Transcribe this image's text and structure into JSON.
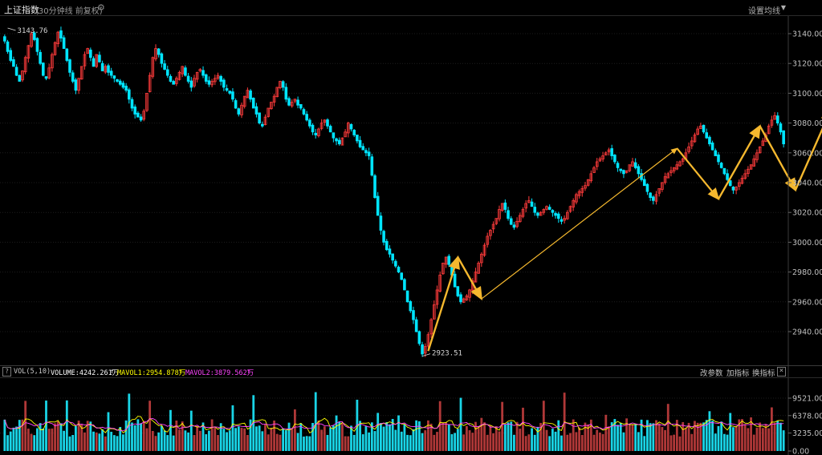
{
  "header": {
    "title": "上证指数",
    "subtitle": "(30分钟线 前复权)",
    "settings_label": "设置均线",
    "gear_icon": "gear-icon",
    "caret_icon": "caret-down-icon"
  },
  "volume_bar": {
    "help_label": "?",
    "vol_label": "VOL(5,10)",
    "volume_text": "VOLUME:4242.261万",
    "mavol1_text": "MAVOL1:2954.878万",
    "mavol2_text": "MAVOL2:3879.562万",
    "up_arrow": "↑",
    "change_params_label": "改参数",
    "add_indicator_label": "加指标",
    "switch_indicator_label": "换指标",
    "close_label": "×",
    "colors": {
      "volume": "#ffffff",
      "mavol1": "#ffff00",
      "mavol2": "#ff44ff"
    }
  },
  "chart_data": [
    {
      "type": "candlestick",
      "title": "上证指数",
      "ylim": [
        2920,
        3150
      ],
      "yticks": [
        {
          "value": 3140,
          "label": "3140.00"
        },
        {
          "value": 3120,
          "label": "3120.00"
        },
        {
          "value": 3100,
          "label": "3100.00"
        },
        {
          "value": 3080,
          "label": "3080.00"
        },
        {
          "value": 3060,
          "label": "3060.00"
        },
        {
          "value": 3040,
          "label": "3040.00"
        },
        {
          "value": 3020,
          "label": "3020.00"
        },
        {
          "value": 3000,
          "label": "3000.00"
        },
        {
          "value": 2980,
          "label": "2980.00"
        },
        {
          "value": 2960,
          "label": "2960.00"
        },
        {
          "value": 2940,
          "label": "2940.00"
        }
      ],
      "grid": true,
      "annotations": [
        {
          "text": "3143.76",
          "value": 3143.76,
          "kind": "high"
        },
        {
          "text": "2923.51",
          "value": 2923.51,
          "kind": "low"
        }
      ],
      "closes": [
        3135,
        3128,
        3122,
        3118,
        3112,
        3108,
        3115,
        3124,
        3132,
        3140,
        3136,
        3128,
        3120,
        3112,
        3110,
        3117,
        3126,
        3134,
        3141,
        3137,
        3130,
        3122,
        3114,
        3108,
        3102,
        3110,
        3118,
        3126,
        3130,
        3124,
        3118,
        3126,
        3121,
        3115,
        3118,
        3114,
        3112,
        3110,
        3108,
        3106,
        3104,
        3102,
        3096,
        3090,
        3086,
        3084,
        3082,
        3088,
        3100,
        3112,
        3124,
        3130,
        3126,
        3120,
        3116,
        3112,
        3108,
        3106,
        3110,
        3114,
        3118,
        3112,
        3108,
        3104,
        3110,
        3114,
        3116,
        3112,
        3108,
        3106,
        3108,
        3110,
        3112,
        3108,
        3104,
        3102,
        3100,
        3096,
        3090,
        3086,
        3092,
        3098,
        3102,
        3096,
        3090,
        3086,
        3080,
        3078,
        3084,
        3090,
        3094,
        3098,
        3104,
        3108,
        3104,
        3096,
        3092,
        3094,
        3096,
        3092,
        3090,
        3086,
        3082,
        3078,
        3074,
        3072,
        3076,
        3080,
        3082,
        3078,
        3074,
        3070,
        3068,
        3066,
        3070,
        3074,
        3080,
        3076,
        3072,
        3068,
        3064,
        3062,
        3060,
        3058,
        3045,
        3030,
        3018,
        3008,
        3000,
        2995,
        2992,
        2988,
        2984,
        2980,
        2975,
        2968,
        2960,
        2954,
        2948,
        2940,
        2932,
        2925,
        2930,
        2938,
        2948,
        2958,
        2968,
        2978,
        2986,
        2990,
        2985,
        2978,
        2970,
        2964,
        2960,
        2962,
        2964,
        2968,
        2974,
        2980,
        2986,
        2992,
        2998,
        3004,
        3008,
        3012,
        3016,
        3022,
        3026,
        3022,
        3016,
        3012,
        3010,
        3014,
        3018,
        3022,
        3026,
        3028,
        3024,
        3020,
        3018,
        3020,
        3022,
        3024,
        3022,
        3020,
        3018,
        3016,
        3014,
        3016,
        3020,
        3024,
        3028,
        3032,
        3034,
        3036,
        3038,
        3042,
        3046,
        3050,
        3054,
        3056,
        3058,
        3060,
        3062,
        3058,
        3054,
        3050,
        3048,
        3046,
        3048,
        3052,
        3054,
        3050,
        3046,
        3042,
        3038,
        3034,
        3030,
        3028,
        3032,
        3036,
        3040,
        3044,
        3046,
        3048,
        3050,
        3052,
        3054,
        3056,
        3060,
        3064,
        3068,
        3072,
        3076,
        3078,
        3074,
        3070,
        3066,
        3062,
        3058,
        3054,
        3050,
        3046,
        3042,
        3038,
        3035,
        3037,
        3040,
        3043,
        3046,
        3049,
        3052,
        3056,
        3060,
        3064,
        3068,
        3072,
        3078,
        3082,
        3085,
        3080,
        3074,
        3066
      ]
    },
    {
      "type": "bar",
      "title": "VOL(5,10)",
      "ylim": [
        0,
        12000
      ],
      "yticks": [
        {
          "value": 9521.0,
          "label": "9521.00"
        },
        {
          "value": 6378.0,
          "label": "6378.00"
        },
        {
          "value": 3235.0,
          "label": "3235.00"
        },
        {
          "value": 0,
          "label": "0.00"
        }
      ],
      "series": [
        {
          "name": "MAVOL1",
          "color": "#ffff00"
        },
        {
          "name": "MAVOL2",
          "color": "#ff44ff"
        }
      ]
    }
  ]
}
